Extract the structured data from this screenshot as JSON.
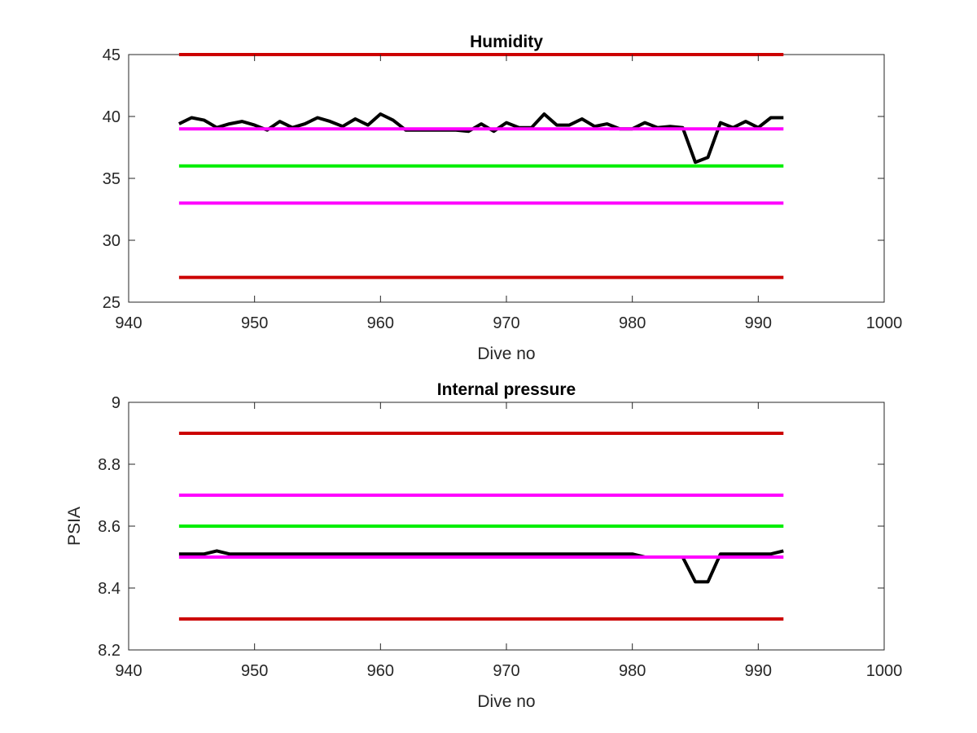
{
  "chart_data": [
    {
      "type": "line",
      "title": "Humidity",
      "xlabel": "Dive no",
      "ylabel": "",
      "xlim": [
        940,
        1000
      ],
      "ylim": [
        25,
        45
      ],
      "xticks": [
        940,
        950,
        960,
        970,
        980,
        990,
        1000
      ],
      "yticks": [
        25,
        30,
        35,
        40,
        45
      ],
      "xtick_labels": [
        "940",
        "950",
        "960",
        "970",
        "980",
        "990",
        "1000"
      ],
      "ytick_labels": [
        "25",
        "30",
        "35",
        "40",
        "45"
      ],
      "grid": false,
      "series": [
        {
          "color": "#000000",
          "x": [
            944,
            945,
            946,
            947,
            948,
            949,
            950,
            951,
            952,
            953,
            954,
            955,
            956,
            957,
            958,
            959,
            960,
            961,
            962,
            963,
            964,
            965,
            966,
            967,
            968,
            969,
            970,
            971,
            972,
            973,
            974,
            975,
            976,
            977,
            978,
            979,
            980,
            981,
            982,
            983,
            984,
            985,
            986,
            987,
            988,
            989,
            990,
            991,
            992
          ],
          "y": [
            39.4,
            39.9,
            39.7,
            39.1,
            39.4,
            39.6,
            39.3,
            38.9,
            39.6,
            39.1,
            39.4,
            39.9,
            39.6,
            39.2,
            39.8,
            39.3,
            40.2,
            39.7,
            38.9,
            38.9,
            38.9,
            38.9,
            38.9,
            38.8,
            39.4,
            38.8,
            39.5,
            39.1,
            39.1,
            40.2,
            39.3,
            39.3,
            39.8,
            39.2,
            39.4,
            39.0,
            39.0,
            39.5,
            39.1,
            39.2,
            39.1,
            36.3,
            36.7,
            39.5,
            39.1,
            39.6,
            39.1,
            39.9,
            39.9
          ]
        },
        {
          "color": "#cc0000",
          "x": [
            944,
            992
          ],
          "y": [
            45,
            45
          ]
        },
        {
          "color": "#ff00ff",
          "x": [
            944,
            992
          ],
          "y": [
            39,
            39
          ]
        },
        {
          "color": "#00ee00",
          "x": [
            944,
            992
          ],
          "y": [
            36,
            36
          ]
        },
        {
          "color": "#ff00ff",
          "x": [
            944,
            992
          ],
          "y": [
            33,
            33
          ]
        },
        {
          "color": "#cc0000",
          "x": [
            944,
            992
          ],
          "y": [
            27,
            27
          ]
        }
      ]
    },
    {
      "type": "line",
      "title": "Internal pressure",
      "xlabel": "Dive no",
      "ylabel": "PSIA",
      "xlim": [
        940,
        1000
      ],
      "ylim": [
        8.2,
        9.0
      ],
      "xticks": [
        940,
        950,
        960,
        970,
        980,
        990,
        1000
      ],
      "yticks": [
        8.2,
        8.4,
        8.6,
        8.8,
        9.0
      ],
      "xtick_labels": [
        "940",
        "950",
        "960",
        "970",
        "980",
        "990",
        "1000"
      ],
      "ytick_labels": [
        "8.2",
        "8.4",
        "8.6",
        "8.8",
        "9"
      ],
      "grid": false,
      "series": [
        {
          "color": "#000000",
          "x": [
            944,
            945,
            946,
            947,
            948,
            949,
            950,
            951,
            952,
            953,
            954,
            955,
            956,
            957,
            958,
            959,
            960,
            961,
            962,
            963,
            964,
            965,
            966,
            967,
            968,
            969,
            970,
            971,
            972,
            973,
            974,
            975,
            976,
            977,
            978,
            979,
            980,
            981,
            982,
            983,
            984,
            985,
            986,
            987,
            988,
            989,
            990,
            991,
            992
          ],
          "y": [
            8.51,
            8.51,
            8.51,
            8.52,
            8.51,
            8.51,
            8.51,
            8.51,
            8.51,
            8.51,
            8.51,
            8.51,
            8.51,
            8.51,
            8.51,
            8.51,
            8.51,
            8.51,
            8.51,
            8.51,
            8.51,
            8.51,
            8.51,
            8.51,
            8.51,
            8.51,
            8.51,
            8.51,
            8.51,
            8.51,
            8.51,
            8.51,
            8.51,
            8.51,
            8.51,
            8.51,
            8.51,
            8.5,
            8.5,
            8.5,
            8.5,
            8.42,
            8.42,
            8.51,
            8.51,
            8.51,
            8.51,
            8.51,
            8.52
          ]
        },
        {
          "color": "#cc0000",
          "x": [
            944,
            992
          ],
          "y": [
            8.9,
            8.9
          ]
        },
        {
          "color": "#ff00ff",
          "x": [
            944,
            992
          ],
          "y": [
            8.7,
            8.7
          ]
        },
        {
          "color": "#00ee00",
          "x": [
            944,
            992
          ],
          "y": [
            8.6,
            8.6
          ]
        },
        {
          "color": "#ff00ff",
          "x": [
            944,
            992
          ],
          "y": [
            8.5,
            8.5
          ]
        },
        {
          "color": "#cc0000",
          "x": [
            944,
            992
          ],
          "y": [
            8.3,
            8.3
          ]
        }
      ]
    }
  ]
}
